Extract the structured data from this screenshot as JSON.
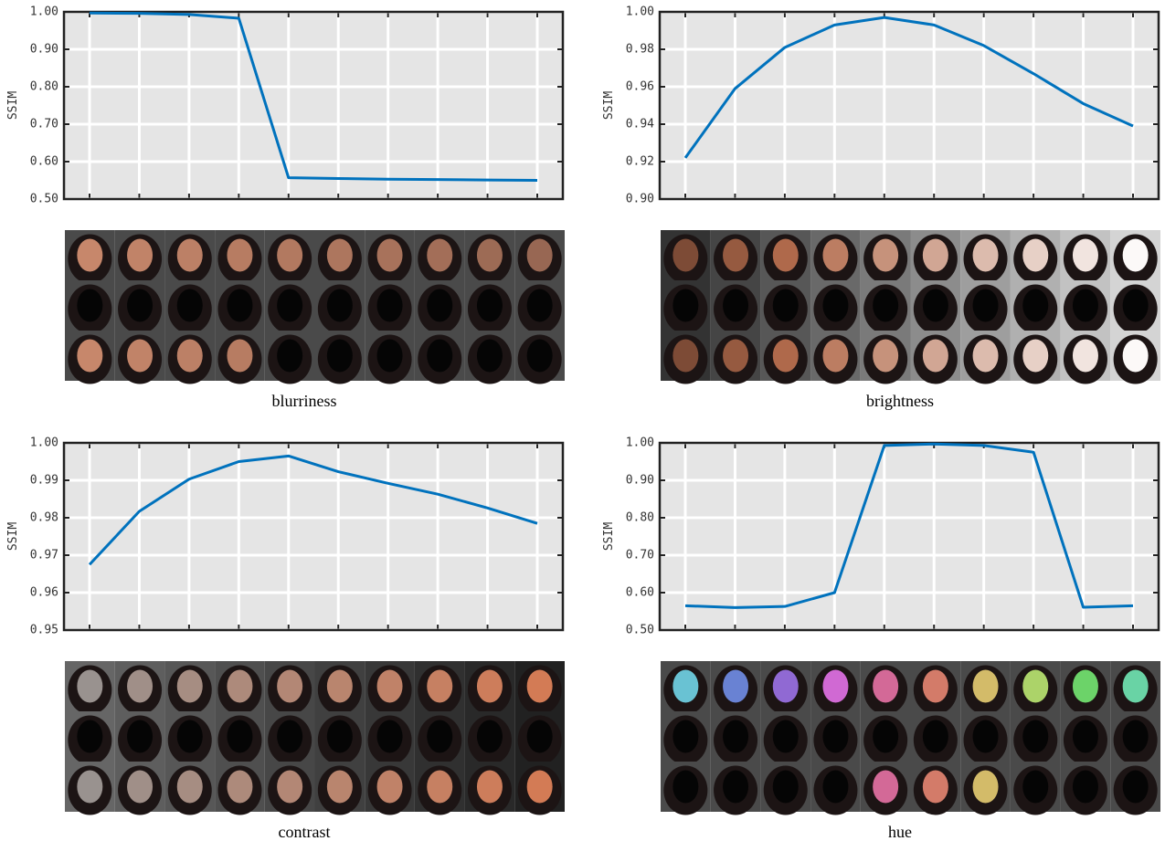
{
  "chart_data": [
    {
      "type": "line",
      "ylabel": "SSIM",
      "xlabel": "blurriness",
      "color": "#0072bd",
      "categories": [
        null,
        null,
        null,
        null,
        null,
        null,
        null,
        null,
        null,
        null
      ],
      "values": [
        0.997,
        0.996,
        0.993,
        0.983,
        0.557,
        0.555,
        0.553,
        0.552,
        0.551,
        0.55
      ],
      "ylim": [
        0.5,
        1.0
      ],
      "grid": true,
      "yticks": [
        {
          "value": 0.5,
          "label": "0.50"
        },
        {
          "value": 0.6,
          "label": "0.60"
        },
        {
          "value": 0.7,
          "label": "0.70"
        },
        {
          "value": 0.8,
          "label": "0.80"
        },
        {
          "value": 0.9,
          "label": "0.90"
        },
        {
          "value": 1.0,
          "label": "1.00"
        }
      ]
    },
    {
      "type": "line",
      "ylabel": "SSIM",
      "xlabel": "brightness",
      "color": "#0072bd",
      "categories": [
        null,
        null,
        null,
        null,
        null,
        null,
        null,
        null,
        null,
        null
      ],
      "values": [
        0.922,
        0.959,
        0.981,
        0.993,
        0.997,
        0.993,
        0.982,
        0.967,
        0.951,
        0.939
      ],
      "ylim": [
        0.9,
        1.0
      ],
      "grid": true,
      "yticks": [
        {
          "value": 0.9,
          "label": "0.90"
        },
        0.92,
        0.94,
        0.96,
        0.98,
        {
          "value": 1.0,
          "label": "1.00"
        }
      ]
    },
    {
      "type": "line",
      "ylabel": "SSIM",
      "xlabel": "contrast",
      "color": "#0072bd",
      "categories": [
        null,
        null,
        null,
        null,
        null,
        null,
        null,
        null,
        null,
        null
      ],
      "values": [
        0.9675,
        0.9817,
        0.9903,
        0.995,
        0.9965,
        0.9923,
        0.9892,
        0.9863,
        0.9826,
        0.9785
      ],
      "ylim": [
        0.95,
        1.0
      ],
      "grid": true,
      "yticks": [
        0.95,
        0.96,
        0.97,
        0.98,
        0.99,
        {
          "value": 1.0,
          "label": "1.00"
        }
      ]
    },
    {
      "type": "line",
      "ylabel": "SSIM",
      "xlabel": "hue",
      "color": "#0072bd",
      "categories": [
        null,
        null,
        null,
        null,
        null,
        null,
        null,
        null,
        null,
        null
      ],
      "values": [
        0.565,
        0.56,
        0.563,
        0.6,
        0.993,
        0.997,
        0.993,
        0.975,
        0.561,
        0.565
      ],
      "ylim": [
        0.5,
        1.0
      ],
      "grid": true,
      "yticks": [
        {
          "value": 0.5,
          "label": "0.50"
        },
        {
          "value": 0.6,
          "label": "0.60"
        },
        {
          "value": 0.7,
          "label": "0.70"
        },
        {
          "value": 0.8,
          "label": "0.80"
        },
        {
          "value": 0.9,
          "label": "0.90"
        },
        {
          "value": 1.0,
          "label": "1.00"
        }
      ]
    }
  ]
}
